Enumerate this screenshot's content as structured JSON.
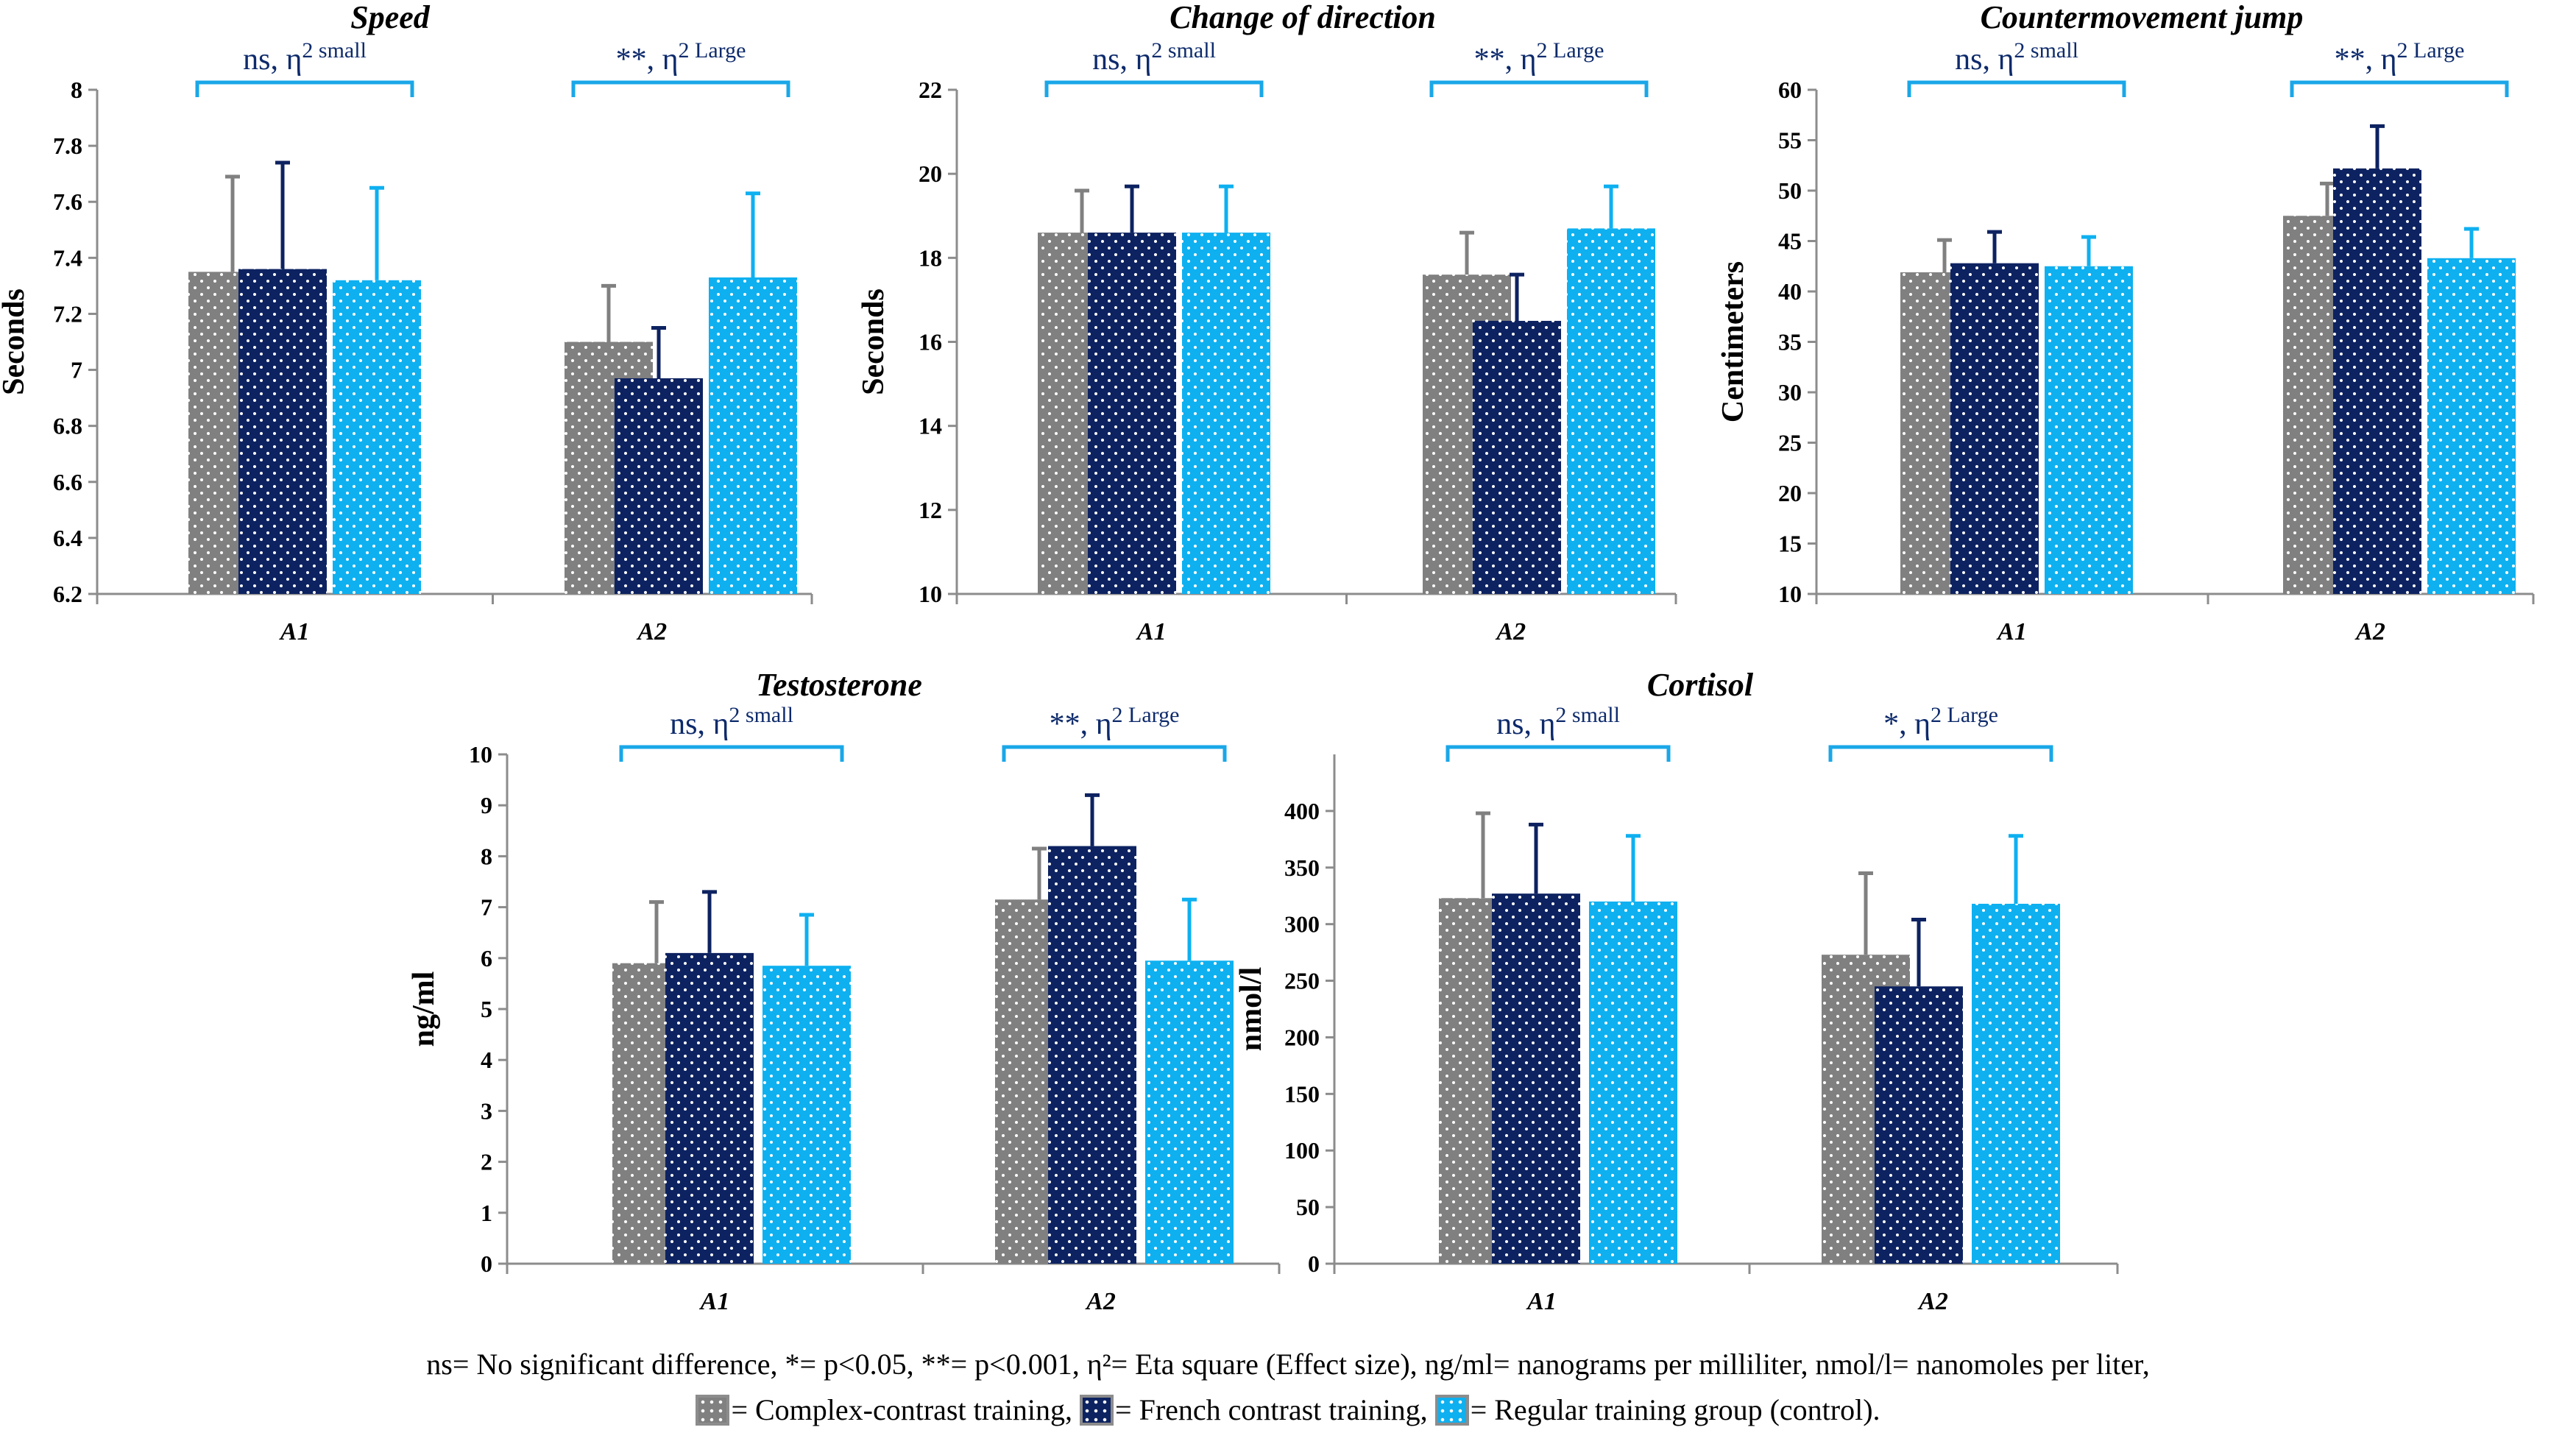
{
  "legend": {
    "footnote": "ns= No significant difference, *= p<0.05, **= p<0.001, η²= Eta square (Effect size), ng/ml= nanograms per milliliter, nmol/l= nanomoles per liter,",
    "items": [
      {
        "label": "= Complex-contrast training,",
        "color": "#808080"
      },
      {
        "label": "= French contrast training,",
        "color": "#0d2260"
      },
      {
        "label": "= Regular training group (control).",
        "color": "#0eb0f0"
      }
    ]
  },
  "colors": {
    "complex": "#808080",
    "french": "#0d2260",
    "regular": "#0eb0f0",
    "bracket": "#1aa7e8",
    "sig_text": "#0d2a6b"
  },
  "chart_data": [
    {
      "type": "bar",
      "title": "Speed",
      "ylabel": "Seconds",
      "categories": [
        "A1",
        "A2"
      ],
      "ylim": [
        6.2,
        8
      ],
      "yticks": [
        6.2,
        6.4,
        6.6,
        6.8,
        7,
        7.2,
        7.4,
        7.6,
        7.8,
        8
      ],
      "series": [
        {
          "name": "Complex-contrast training",
          "values": [
            7.35,
            7.1
          ],
          "errors": [
            0.34,
            0.2
          ]
        },
        {
          "name": "French contrast training",
          "values": [
            7.36,
            6.97
          ],
          "errors": [
            0.38,
            0.18
          ]
        },
        {
          "name": "Regular training group (control)",
          "values": [
            7.32,
            7.33
          ],
          "errors": [
            0.33,
            0.3
          ]
        }
      ],
      "annotations": [
        {
          "main": "ns, η",
          "sup": "2 small"
        },
        {
          "main": "**, η",
          "sup": "2 Large"
        }
      ]
    },
    {
      "type": "bar",
      "title": "Change of direction",
      "ylabel": "Seconds",
      "categories": [
        "A1",
        "A2"
      ],
      "ylim": [
        10,
        22
      ],
      "yticks": [
        10,
        12,
        14,
        16,
        18,
        20,
        22
      ],
      "series": [
        {
          "name": "Complex-contrast training",
          "values": [
            18.6,
            17.6
          ],
          "errors": [
            1.0,
            1.0
          ]
        },
        {
          "name": "French contrast training",
          "values": [
            18.6,
            16.5
          ],
          "errors": [
            1.1,
            1.1
          ]
        },
        {
          "name": "Regular training group (control)",
          "values": [
            18.6,
            18.7
          ],
          "errors": [
            1.1,
            1.0
          ]
        }
      ],
      "annotations": [
        {
          "main": "ns, η",
          "sup": "2 small"
        },
        {
          "main": "**, η",
          "sup": "2 Large"
        }
      ]
    },
    {
      "type": "bar",
      "title": "Countermovement jump",
      "ylabel": "Centimeters",
      "categories": [
        "A1",
        "A2"
      ],
      "ylim": [
        10,
        60
      ],
      "yticks": [
        10,
        15,
        20,
        25,
        30,
        35,
        40,
        45,
        50,
        55,
        60
      ],
      "series": [
        {
          "name": "Complex-contrast training",
          "values": [
            41.9,
            47.5
          ],
          "errors": [
            3.2,
            3.2
          ]
        },
        {
          "name": "French contrast training",
          "values": [
            42.8,
            52.2
          ],
          "errors": [
            3.1,
            4.2
          ]
        },
        {
          "name": "Regular training group (control)",
          "values": [
            42.5,
            43.3
          ],
          "errors": [
            2.9,
            2.9
          ]
        }
      ],
      "annotations": [
        {
          "main": "ns, η",
          "sup": "2 small"
        },
        {
          "main": "**, η",
          "sup": "2 Large"
        }
      ]
    },
    {
      "type": "bar",
      "title": "Testosterone",
      "ylabel": "ng/ml",
      "categories": [
        "A1",
        "A2"
      ],
      "ylim": [
        0,
        10
      ],
      "yticks": [
        0,
        1,
        2,
        3,
        4,
        5,
        6,
        7,
        8,
        9,
        10
      ],
      "series": [
        {
          "name": "Complex-contrast training",
          "values": [
            5.9,
            7.15
          ],
          "errors": [
            1.2,
            1.0
          ]
        },
        {
          "name": "French contrast training",
          "values": [
            6.1,
            8.2
          ],
          "errors": [
            1.2,
            1.0
          ]
        },
        {
          "name": "Regular training group (control)",
          "values": [
            5.85,
            5.95
          ],
          "errors": [
            1.0,
            1.2
          ]
        }
      ],
      "annotations": [
        {
          "main": "ns, η",
          "sup": "2 small"
        },
        {
          "main": "**, η",
          "sup": "2 Large"
        }
      ]
    },
    {
      "type": "bar",
      "title": "Cortisol",
      "ylabel": "nmol/l",
      "categories": [
        "A1",
        "A2"
      ],
      "ylim": [
        0,
        450
      ],
      "yticks": [
        0,
        50,
        100,
        150,
        200,
        250,
        300,
        350,
        400
      ],
      "series": [
        {
          "name": "Complex-contrast training",
          "values": [
            323,
            273
          ],
          "errors": [
            75,
            72
          ]
        },
        {
          "name": "French contrast training",
          "values": [
            327,
            245
          ],
          "errors": [
            61,
            59
          ]
        },
        {
          "name": "Regular training group (control)",
          "values": [
            320,
            318
          ],
          "errors": [
            58,
            60
          ]
        }
      ],
      "annotations": [
        {
          "main": "ns, η",
          "sup": "2 small"
        },
        {
          "main": "*, η",
          "sup": "2 Large"
        }
      ]
    }
  ]
}
